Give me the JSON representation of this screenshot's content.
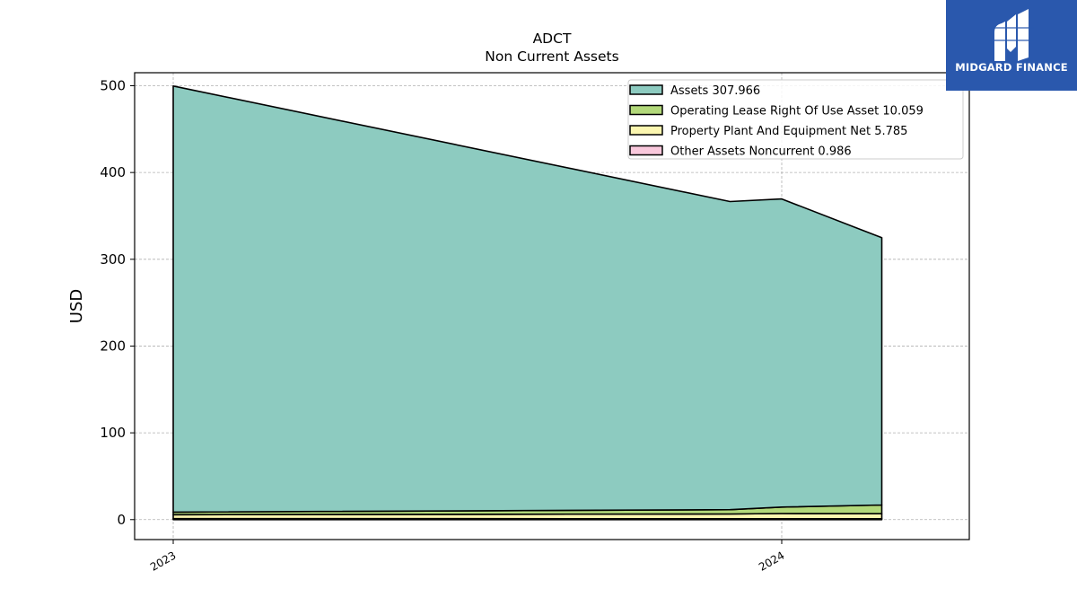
{
  "brand": {
    "name": "MIDGARD FINANCE",
    "logo_icon": "midgard-m-logo",
    "background": "#2a58ad"
  },
  "chart_data": {
    "type": "area",
    "title": "ADCT",
    "subtitle": "Non Current  Assets",
    "ylabel": "USD",
    "xlabel": "",
    "x": [
      "2023",
      "2023-12",
      "2024",
      "2024-03"
    ],
    "x_tick_labels": [
      "2023",
      "2024"
    ],
    "ylim": [
      -23,
      515
    ],
    "yticks": [
      0,
      100,
      200,
      300,
      400,
      500
    ],
    "grid": true,
    "legend_position": "top-right",
    "stacked": true,
    "series": [
      {
        "name": "Other Assets Noncurrent",
        "legend_value": "0.986",
        "color": "#f9c8dc",
        "values": [
          1.2,
          1.0,
          1.0,
          0.986
        ]
      },
      {
        "name": "Property Plant And Equipment Net",
        "legend_value": "5.785",
        "color": "#fbf6b0",
        "values": [
          4.5,
          5.5,
          6.0,
          5.785
        ]
      },
      {
        "name": "Operating Lease Right Of Use Asset",
        "legend_value": "10.059",
        "color": "#b2d87a",
        "values": [
          3.0,
          5.0,
          7.5,
          10.059
        ]
      },
      {
        "name": "Assets",
        "legend_value": "307.966",
        "color": "#8dcbc0",
        "values": [
          491.0,
          355.0,
          355.0,
          307.966
        ]
      }
    ]
  }
}
